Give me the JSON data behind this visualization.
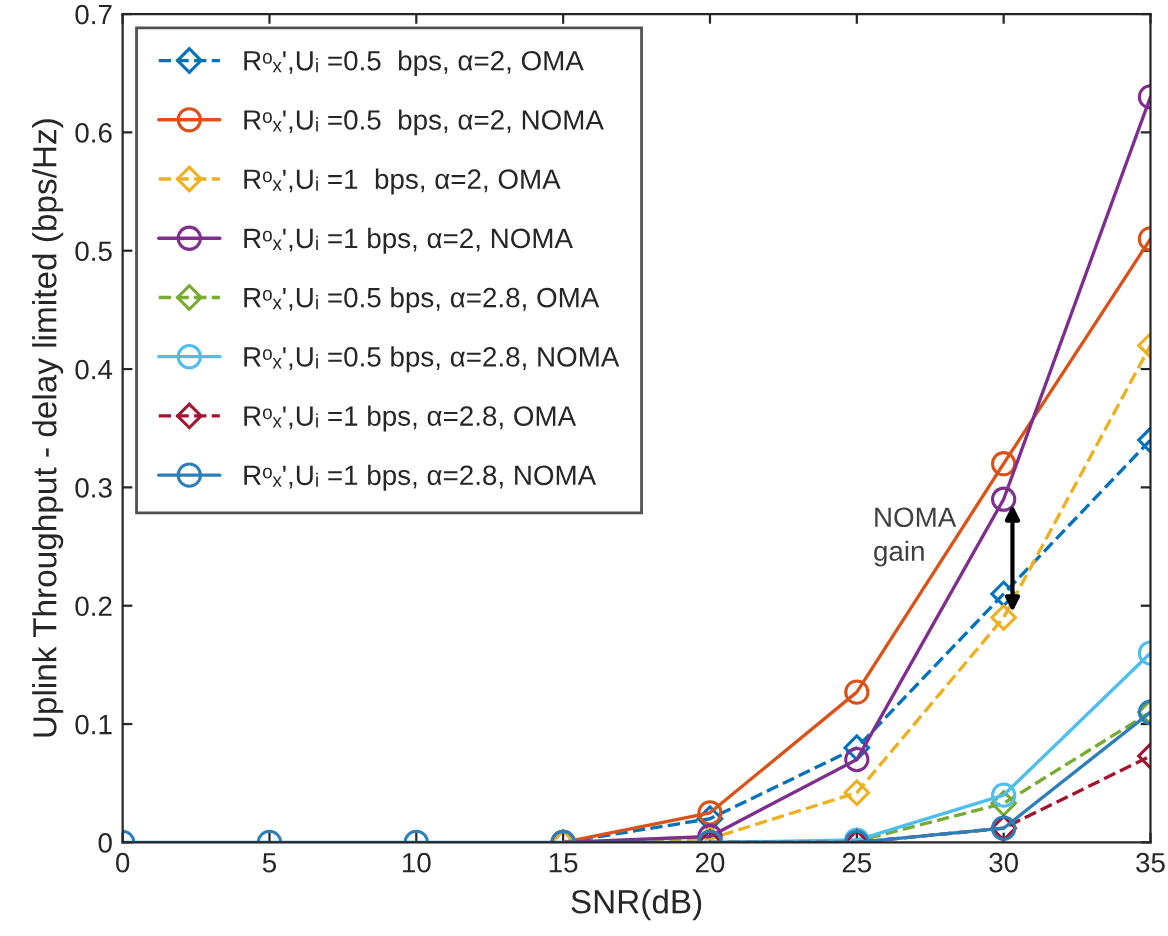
{
  "chart_data": {
    "type": "line",
    "xlabel": "SNR(dB)",
    "ylabel": "Uplink Throughput - delay limited (bps/Hz)",
    "x": [
      0,
      5,
      10,
      15,
      20,
      25,
      30,
      35
    ],
    "xlim": [
      0,
      35
    ],
    "ylim": [
      0,
      0.7
    ],
    "xticks": [
      0,
      5,
      10,
      15,
      20,
      25,
      30,
      35
    ],
    "yticks": [
      0,
      0.1,
      0.2,
      0.3,
      0.4,
      0.5,
      0.6,
      0.7
    ],
    "legend": "top left",
    "series": [
      {
        "name": "Rᵒₓ',Uᵢ =0.5  bps, α=2, OMA",
        "color": "#0072bd",
        "marker": "diamond",
        "line_style": "dashed",
        "values": [
          null,
          null,
          null,
          0,
          0.02,
          0.08,
          0.21,
          0.34
        ]
      },
      {
        "name": "Rᵒₓ',Uᵢ =0.5  bps, α=2, NOMA",
        "color": "#d95319",
        "marker": "circle",
        "line_style": "solid",
        "values": [
          null,
          null,
          null,
          0,
          0.025,
          0.127,
          0.32,
          0.51
        ]
      },
      {
        "name": "Rᵒₓ',Uᵢ =1  bps, α=2, OMA",
        "color": "#edb120",
        "marker": "diamond",
        "line_style": "dashed",
        "values": [
          null,
          null,
          null,
          0,
          0.003,
          0.042,
          0.19,
          0.42
        ]
      },
      {
        "name": "Rᵒₓ',Uᵢ =1 bps, α=2, NOMA",
        "color": "#7e2f8e",
        "marker": "circle",
        "line_style": "solid",
        "values": [
          null,
          null,
          null,
          0,
          0.005,
          0.07,
          0.29,
          0.63
        ]
      },
      {
        "name": "Rᵒₓ',Uᵢ =0.5 bps, α=2.8, OMA",
        "color": "#77ac30",
        "marker": "diamond",
        "line_style": "dashed",
        "values": [
          null,
          null,
          null,
          null,
          0,
          0.001,
          0.033,
          0.11
        ]
      },
      {
        "name": "Rᵒₓ',Uᵢ =0.5 bps, α=2.8, NOMA",
        "color": "#4dbeee",
        "marker": "circle",
        "line_style": "solid",
        "values": [
          null,
          null,
          null,
          null,
          0,
          0.002,
          0.04,
          0.16
        ]
      },
      {
        "name": "Rᵒₓ',Uᵢ =1 bps, α=2.8, OMA",
        "color": "#a2142f",
        "marker": "diamond",
        "line_style": "dashed",
        "values": [
          null,
          null,
          null,
          null,
          0,
          0,
          0.012,
          0.073
        ]
      },
      {
        "name": "Rᵒₓ',Uᵢ =1 bps, α=2.8, NOMA",
        "color": "#2c7fb8",
        "marker": "circle",
        "line_style": "solid",
        "values": [
          0,
          0,
          0,
          0,
          0,
          0,
          0.012,
          0.11
        ]
      }
    ],
    "annotations": [
      "NOMA\ngain"
    ]
  }
}
